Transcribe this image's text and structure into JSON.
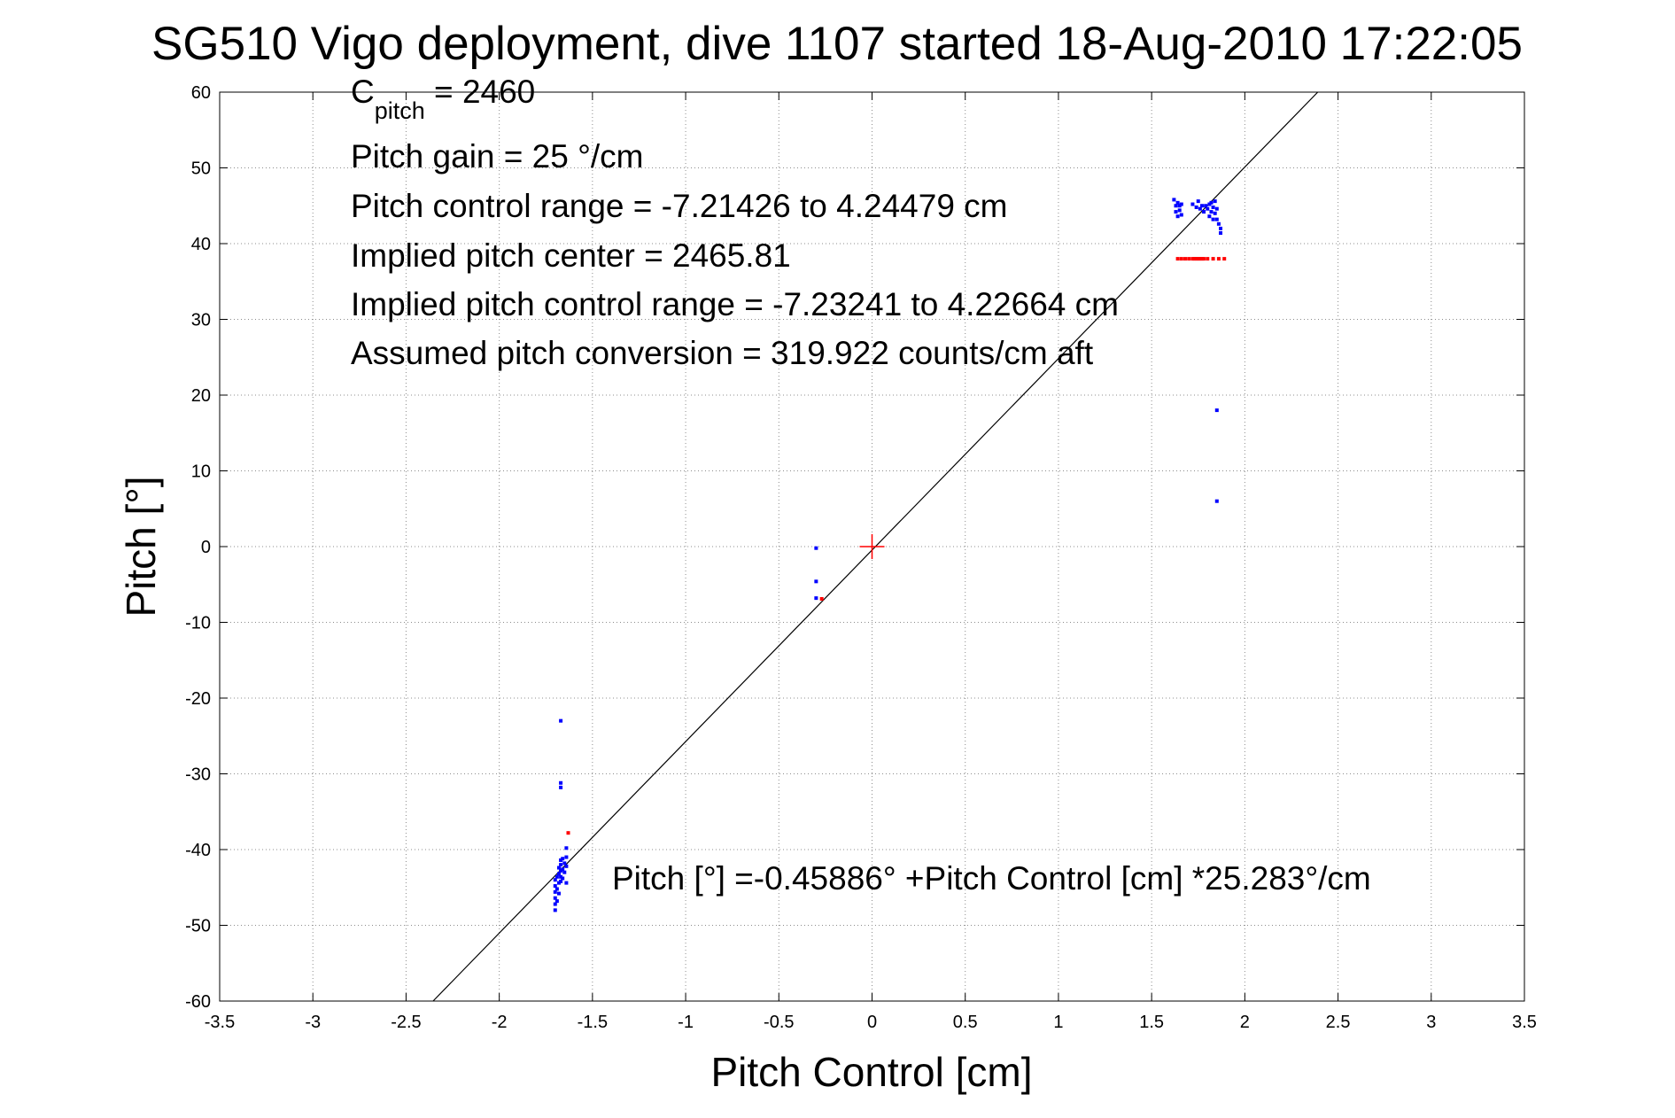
{
  "chart_data": {
    "type": "scatter",
    "title": "SG510 Vigo deployment, dive 1107 started 18-Aug-2010 17:22:05",
    "xlabel": "Pitch Control [cm]",
    "ylabel": "Pitch [°]",
    "xlim": [
      -3.5,
      3.5
    ],
    "ylim": [
      -60,
      60
    ],
    "xticks": [
      -3.5,
      -3,
      -2.5,
      -2,
      -1.5,
      -1,
      -0.5,
      0,
      0.5,
      1,
      1.5,
      2,
      2.5,
      3,
      3.5
    ],
    "yticks": [
      60,
      50,
      40,
      30,
      20,
      10,
      0,
      -10,
      -20,
      -30,
      -40,
      -50,
      -60
    ],
    "xtick_labels": [
      "-3.5",
      "-3",
      "-2.5",
      "-2",
      "-1.5",
      "-1",
      "-0.5",
      "0",
      "0.5",
      "1",
      "1.5",
      "2",
      "2.5",
      "3",
      "3.5"
    ],
    "ytick_labels": [
      "60",
      "50",
      "40",
      "30",
      "20",
      "10",
      "0",
      "-10",
      "-20",
      "-30",
      "-40",
      "-50",
      "-60"
    ],
    "grid": true,
    "colors": {
      "observed": "#0000ff",
      "fit": "#ff0000",
      "line": "#000000",
      "center": "#ff0000"
    },
    "annotations": {
      "c_pitch_main": "C",
      "c_pitch_sub": "pitch",
      "c_pitch_value": " = 2460",
      "gain": "Pitch gain = 25 °/cm",
      "control_range": "Pitch control range = -7.21426 to 4.24479 cm",
      "implied_center": "Implied pitch center = 2465.81",
      "implied_range": "Implied pitch control range = -7.23241 to 4.22664 cm",
      "conversion": "Assumed pitch conversion = 319.922 counts/cm aft",
      "equation": "Pitch [°] =-0.45886° +Pitch Control [cm] *25.283°/cm"
    },
    "fit_line": {
      "intercept": -0.45886,
      "slope": 25.283
    },
    "center_marker": {
      "x": 0,
      "y": 0
    },
    "series": [
      {
        "points": [
          [
            -1.7,
            -44.0
          ],
          [
            -1.7,
            -44.8
          ],
          [
            -1.7,
            -45.6
          ],
          [
            -1.7,
            -46.4
          ],
          [
            -1.7,
            -47.2
          ],
          [
            -1.7,
            -48.0
          ],
          [
            -1.69,
            -43.6
          ],
          [
            -1.69,
            -45.2
          ],
          [
            -1.69,
            -46.8
          ],
          [
            -1.68,
            -42.4
          ],
          [
            -1.68,
            -43.2
          ],
          [
            -1.68,
            -44.4
          ],
          [
            -1.68,
            -45.8
          ],
          [
            -1.67,
            -41.4
          ],
          [
            -1.67,
            -42.0
          ],
          [
            -1.67,
            -42.8
          ],
          [
            -1.67,
            -43.6
          ],
          [
            -1.67,
            -44.2
          ],
          [
            -1.66,
            -41.2
          ],
          [
            -1.66,
            -42.6
          ],
          [
            -1.66,
            -43.8
          ],
          [
            -1.65,
            -41.8
          ],
          [
            -1.65,
            -43.0
          ],
          [
            -1.64,
            -39.8
          ],
          [
            -1.64,
            -41.0
          ],
          [
            -1.64,
            -42.2
          ],
          [
            -1.64,
            -44.4
          ],
          [
            -1.67,
            -23.0
          ],
          [
            -1.67,
            -31.2
          ],
          [
            -1.67,
            -31.8
          ],
          [
            -0.3,
            -0.2
          ],
          [
            -0.3,
            -4.6
          ],
          [
            -0.3,
            -6.8
          ],
          [
            1.62,
            45.8
          ],
          [
            1.63,
            45.0
          ],
          [
            1.63,
            44.2
          ],
          [
            1.64,
            43.6
          ],
          [
            1.64,
            45.4
          ],
          [
            1.65,
            45.0
          ],
          [
            1.65,
            44.4
          ],
          [
            1.66,
            45.2
          ],
          [
            1.66,
            43.8
          ],
          [
            1.72,
            45.2
          ],
          [
            1.74,
            44.8
          ],
          [
            1.75,
            45.6
          ],
          [
            1.76,
            44.6
          ],
          [
            1.77,
            45.0
          ],
          [
            1.78,
            44.2
          ],
          [
            1.79,
            45.0
          ],
          [
            1.8,
            44.6
          ],
          [
            1.81,
            45.2
          ],
          [
            1.81,
            43.6
          ],
          [
            1.82,
            44.2
          ],
          [
            1.82,
            45.4
          ],
          [
            1.83,
            44.8
          ],
          [
            1.83,
            43.2
          ],
          [
            1.84,
            45.6
          ],
          [
            1.84,
            44.0
          ],
          [
            1.85,
            44.6
          ],
          [
            1.85,
            43.2
          ],
          [
            1.86,
            42.6
          ],
          [
            1.87,
            42.0
          ],
          [
            1.87,
            41.4
          ],
          [
            1.85,
            18.0
          ],
          [
            1.85,
            6.0
          ]
        ]
      },
      {
        "points": [
          [
            -1.63,
            -37.8
          ],
          [
            -0.27,
            -6.9
          ],
          [
            1.64,
            38.0
          ],
          [
            1.66,
            38.0
          ],
          [
            1.68,
            38.0
          ],
          [
            1.7,
            38.0
          ],
          [
            1.72,
            38.0
          ],
          [
            1.73,
            38.0
          ],
          [
            1.74,
            38.0
          ],
          [
            1.75,
            38.0
          ],
          [
            1.76,
            38.0
          ],
          [
            1.77,
            38.0
          ],
          [
            1.78,
            38.0
          ],
          [
            1.8,
            38.0
          ],
          [
            1.83,
            38.0
          ],
          [
            1.86,
            38.0
          ],
          [
            1.89,
            38.0
          ]
        ]
      }
    ]
  }
}
